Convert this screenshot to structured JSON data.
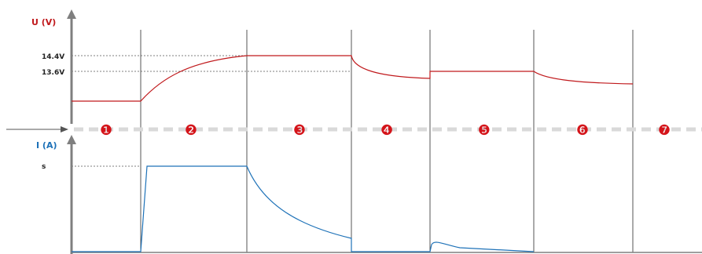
{
  "voltage_axis": {
    "label": "U (V)",
    "color": "#c0191c"
  },
  "current_axis": {
    "label": "I (A)",
    "color": "#1e72b8"
  },
  "voltage_levels": [
    {
      "label": "14.4V",
      "value": 14.4
    },
    {
      "label": "13.6V",
      "value": 13.6
    }
  ],
  "current_levels": [
    {
      "label": "s"
    }
  ],
  "stages": [
    {
      "number": "1",
      "symbol": "❶"
    },
    {
      "number": "2",
      "symbol": "❷"
    },
    {
      "number": "3",
      "symbol": "❸"
    },
    {
      "number": "4",
      "symbol": "❹"
    },
    {
      "number": "5",
      "symbol": "❺"
    },
    {
      "number": "6",
      "symbol": "❻"
    },
    {
      "number": "7",
      "symbol": "❼"
    }
  ],
  "colors": {
    "voltage": "#c0191c",
    "current": "#1e72b8",
    "axis": "#7f7f7f",
    "divider": "#555555",
    "separator": "#d9d9d9",
    "stage_marker": "#d4141a"
  }
}
